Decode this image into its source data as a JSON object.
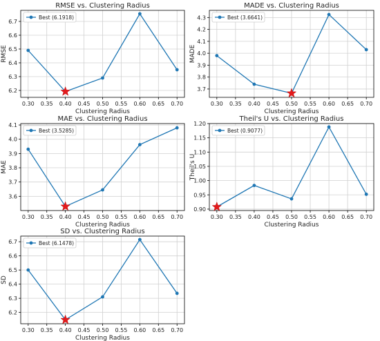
{
  "colors": {
    "line": "#1f77b4",
    "star": "#e31a1c",
    "grid": "#d0d0d0",
    "axis": "#000000"
  },
  "chart_data": [
    {
      "type": "line",
      "title": "RMSE vs. Clustering Radius",
      "xlabel": "Clustering Radius",
      "ylabel": "RMSE",
      "x": [
        0.3,
        0.4,
        0.5,
        0.6,
        0.7
      ],
      "y": [
        6.49,
        6.1918,
        6.29,
        6.755,
        6.35
      ],
      "xlim": [
        0.28,
        0.72
      ],
      "ylim": [
        6.15,
        6.78
      ],
      "xticks": [
        "0.30",
        "0.35",
        "0.40",
        "0.45",
        "0.50",
        "0.55",
        "0.60",
        "0.65",
        "0.70"
      ],
      "yticks": [
        "6.2",
        "6.3",
        "6.4",
        "6.5",
        "6.6",
        "6.7"
      ],
      "legend": "Best (6.1918)",
      "legend_position": "top-left",
      "best": {
        "x": 0.4,
        "y": 6.1918
      },
      "grid": true
    },
    {
      "type": "line",
      "title": "MADE vs. Clustering Radius",
      "xlabel": "Clustering Radius",
      "ylabel": "MADE",
      "x": [
        0.3,
        0.4,
        0.5,
        0.6,
        0.7
      ],
      "y": [
        3.98,
        3.74,
        3.6641,
        4.325,
        4.03
      ],
      "xlim": [
        0.28,
        0.72
      ],
      "ylim": [
        3.63,
        4.36
      ],
      "xticks": [
        "0.30",
        "0.35",
        "0.40",
        "0.45",
        "0.50",
        "0.55",
        "0.60",
        "0.65",
        "0.70"
      ],
      "yticks": [
        "3.7",
        "3.8",
        "3.9",
        "4.0",
        "4.1",
        "4.2",
        "4.3"
      ],
      "legend": "Best (3.6641)",
      "legend_position": "top-left",
      "best": {
        "x": 0.5,
        "y": 3.6641
      },
      "grid": true
    },
    {
      "type": "line",
      "title": "MAE vs. Clustering Radius",
      "xlabel": "Clustering Radius",
      "ylabel": "MAE",
      "x": [
        0.3,
        0.4,
        0.5,
        0.6,
        0.7
      ],
      "y": [
        3.93,
        3.5285,
        3.645,
        3.962,
        4.08
      ],
      "xlim": [
        0.28,
        0.72
      ],
      "ylim": [
        3.5,
        4.11
      ],
      "xticks": [
        "0.30",
        "0.35",
        "0.40",
        "0.45",
        "0.50",
        "0.55",
        "0.60",
        "0.65",
        "0.70"
      ],
      "yticks": [
        "3.6",
        "3.7",
        "3.8",
        "3.9",
        "4.0",
        "4.1"
      ],
      "legend": "Best (3.5285)",
      "legend_position": "top-left",
      "best": {
        "x": 0.4,
        "y": 3.5285
      },
      "grid": true
    },
    {
      "type": "line",
      "title": "Theil's U vs. Clustering Radius",
      "xlabel": "Clustering Radius",
      "ylabel": "Theil's U",
      "x": [
        0.3,
        0.4,
        0.5,
        0.6,
        0.7
      ],
      "y": [
        0.9077,
        0.983,
        0.936,
        1.188,
        0.952
      ],
      "xlim": [
        0.28,
        0.72
      ],
      "ylim": [
        0.895,
        1.2
      ],
      "xticks": [
        "0.30",
        "0.35",
        "0.40",
        "0.45",
        "0.50",
        "0.55",
        "0.60",
        "0.65",
        "0.70"
      ],
      "yticks": [
        "0.90",
        "0.95",
        "1.00",
        "1.05",
        "1.10",
        "1.15",
        "1.20"
      ],
      "legend": "Best (0.9077)",
      "legend_position": "top-left",
      "best": {
        "x": 0.3,
        "y": 0.9077
      },
      "grid": true
    },
    {
      "type": "line",
      "title": "SD vs. Clustering Radius",
      "xlabel": "Clustering Radius",
      "ylabel": "SD",
      "x": [
        0.3,
        0.4,
        0.5,
        0.6,
        0.7
      ],
      "y": [
        6.5,
        6.1478,
        6.31,
        6.715,
        6.335
      ],
      "xlim": [
        0.28,
        0.72
      ],
      "ylim": [
        6.12,
        6.74
      ],
      "xticks": [
        "0.30",
        "0.35",
        "0.40",
        "0.45",
        "0.50",
        "0.55",
        "0.60",
        "0.65",
        "0.70"
      ],
      "yticks": [
        "6.2",
        "6.3",
        "6.4",
        "6.5",
        "6.6",
        "6.7"
      ],
      "legend": "Best (6.1478)",
      "legend_position": "top-left",
      "best": {
        "x": 0.4,
        "y": 6.1478
      },
      "grid": true
    }
  ]
}
